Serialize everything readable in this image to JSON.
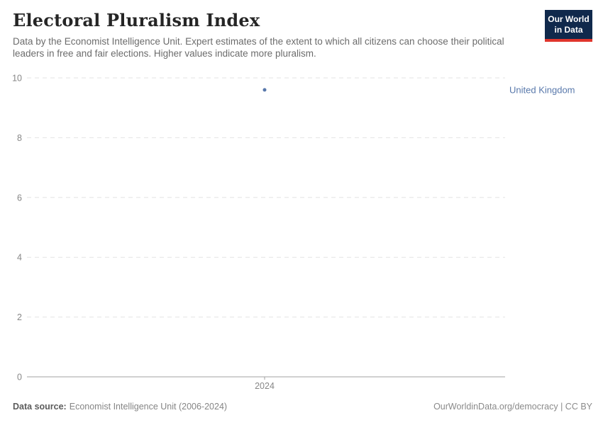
{
  "header": {
    "title": "Electoral Pluralism Index",
    "subtitle": "Data by the Economist Intelligence Unit. Expert estimates of the extent to which all citizens can choose their political leaders in free and fair elections. Higher values indicate more pluralism.",
    "logo": {
      "line1": "Our World",
      "line2": "in Data"
    }
  },
  "colors": {
    "logo_bg": "#10294c",
    "logo_accent": "#e0352c",
    "series_blue": "#5878ab",
    "grid": "#e3e3e3",
    "axis": "#a1a1a1",
    "tick_text": "#878787"
  },
  "chart_data": {
    "type": "scatter",
    "title": "Electoral Pluralism Index",
    "series": [
      {
        "name": "United Kingdom",
        "x": [
          2024
        ],
        "y": [
          9.6
        ]
      }
    ],
    "x_ticks": [
      "2024"
    ],
    "y_ticks": [
      0,
      2,
      4,
      6,
      8,
      10
    ],
    "ylim": [
      0,
      10
    ],
    "xlabel": "",
    "ylabel": "",
    "grid": true,
    "legend_position": "label-right-of-point"
  },
  "footer": {
    "source_label": "Data source:",
    "source_value": "Economist Intelligence Unit (2006-2024)",
    "credit": "OurWorldinData.org/democracy | CC BY"
  }
}
